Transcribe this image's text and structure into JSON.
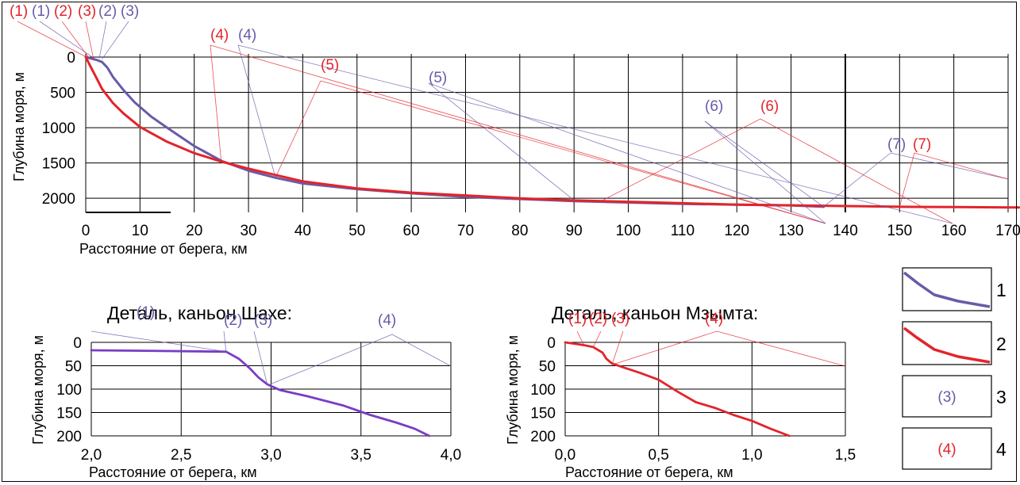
{
  "colors": {
    "blue": "#6a5aa8",
    "red": "#e3242b",
    "purple": "#7a3cc4",
    "grid": "#000000"
  },
  "chart_data": [
    {
      "type": "line",
      "title": "",
      "xlabel": "Расстояние от берега, км",
      "ylabel": "Глубина моря, м",
      "xlim": [
        0,
        170
      ],
      "ylim": [
        2200,
        0
      ],
      "x_ticks": [
        "0",
        "10",
        "20",
        "30",
        "40",
        "50",
        "60",
        "70",
        "80",
        "90",
        "100",
        "110",
        "120",
        "130",
        "140",
        "150",
        "160",
        "170"
      ],
      "y_ticks": [
        "0",
        "500",
        "1000",
        "1500",
        "2000"
      ],
      "grid": true,
      "series": [
        {
          "name": "1",
          "color": "#6a5aa8",
          "x": [
            0,
            1,
            2,
            3,
            4,
            5,
            7,
            9,
            12,
            15,
            20,
            25,
            30,
            35,
            40,
            50,
            60,
            70,
            80,
            90,
            100,
            110,
            120,
            130,
            136
          ],
          "y": [
            0,
            20,
            40,
            70,
            150,
            280,
            470,
            640,
            840,
            1000,
            1260,
            1470,
            1610,
            1710,
            1790,
            1870,
            1930,
            1980,
            2010,
            2040,
            2060,
            2080,
            2090,
            2100,
            2120
          ]
        },
        {
          "name": "2",
          "color": "#e3242b",
          "x": [
            0,
            1,
            2,
            3,
            5,
            7,
            10,
            15,
            20,
            25,
            30,
            35,
            40,
            50,
            60,
            70,
            80,
            90,
            100,
            110,
            120,
            130,
            140,
            150,
            160,
            172
          ],
          "y": [
            0,
            150,
            300,
            450,
            650,
            800,
            990,
            1200,
            1360,
            1480,
            1580,
            1670,
            1760,
            1860,
            1920,
            1960,
            2000,
            2030,
            2050,
            2070,
            2090,
            2100,
            2110,
            2120,
            2125,
            2130
          ]
        }
      ],
      "annotations": [
        {
          "label": "(1)",
          "color": "#e3242b",
          "x": 0.5,
          "y": 15
        },
        {
          "label": "(1)",
          "color": "#6a5aa8",
          "x": 1.5,
          "y": 15
        },
        {
          "label": "(2)",
          "color": "#e3242b",
          "x": 0.8,
          "y": 30
        },
        {
          "label": "(3)",
          "color": "#e3242b",
          "x": 1.5,
          "y": 50
        },
        {
          "label": "(2)",
          "color": "#6a5aa8",
          "x": 2.5,
          "y": 20
        },
        {
          "label": "(3)",
          "color": "#6a5aa8",
          "x": 3,
          "y": 30
        },
        {
          "label": "(4)",
          "color": "#e3242b",
          "x": 25,
          "y": 1500
        },
        {
          "label": "(4)",
          "color": "#6a5aa8",
          "x": 35,
          "y": 1710
        },
        {
          "label": "(5)",
          "color": "#e3242b",
          "x": 35,
          "y": 1700
        },
        {
          "label": "(5)",
          "color": "#6a5aa8",
          "x": 90,
          "y": 2030
        },
        {
          "label": "(6)",
          "color": "#6a5aa8",
          "x": 136,
          "y": 2120
        },
        {
          "label": "(6)",
          "color": "#e3242b",
          "x": 95,
          "y": 2040
        },
        {
          "label": "(7)",
          "color": "#6a5aa8",
          "x": 136,
          "y": 2120
        },
        {
          "label": "(7)",
          "color": "#e3242b",
          "x": 150,
          "y": 2120
        }
      ]
    },
    {
      "type": "line",
      "title": "Деталь, каньон Шахе:",
      "xlabel": "Расстояние от берега, км",
      "ylabel": "Глубина моря, м",
      "xlim": [
        2.0,
        4.0
      ],
      "ylim": [
        200,
        0
      ],
      "x_ticks": [
        "2,0",
        "2,5",
        "3,0",
        "3,5",
        "4,0"
      ],
      "y_ticks": [
        "0",
        "50",
        "100",
        "150",
        "200"
      ],
      "grid": true,
      "series": [
        {
          "name": "",
          "color": "#7a3cc4",
          "x": [
            2.0,
            2.3,
            2.75,
            2.82,
            2.88,
            2.93,
            2.98,
            3.05,
            3.2,
            3.4,
            3.55,
            3.7,
            3.8,
            3.88
          ],
          "y": [
            17,
            18,
            20,
            35,
            55,
            75,
            90,
            102,
            115,
            135,
            155,
            172,
            185,
            200
          ]
        }
      ],
      "annotations": [
        {
          "label": "(1)",
          "color": "#6a5aa8",
          "x": 2.75,
          "y": 20
        },
        {
          "label": "(2)",
          "color": "#6a5aa8",
          "x": 2.75,
          "y": 20
        },
        {
          "label": "(3)",
          "color": "#6a5aa8",
          "x": 2.98,
          "y": 92
        },
        {
          "label": "(4)",
          "color": "#6a5aa8",
          "x": 2.98,
          "y": 92
        }
      ]
    },
    {
      "type": "line",
      "title": "Деталь, каньон Мзымта:",
      "xlabel": "Расстояние от берега, км",
      "ylabel": "Глубина моря, м",
      "xlim": [
        0.0,
        1.5
      ],
      "ylim": [
        200,
        0
      ],
      "x_ticks": [
        "0,0",
        "0,5",
        "1,0",
        "1,5"
      ],
      "y_ticks": [
        "0",
        "50",
        "100",
        "150",
        "200"
      ],
      "grid": true,
      "series": [
        {
          "name": "",
          "color": "#e3242b",
          "x": [
            0.0,
            0.05,
            0.1,
            0.15,
            0.2,
            0.22,
            0.25,
            0.3,
            0.4,
            0.5,
            0.6,
            0.7,
            0.8,
            0.9,
            1.0,
            1.1,
            1.2
          ],
          "y": [
            0,
            3,
            6,
            10,
            22,
            35,
            45,
            52,
            65,
            80,
            105,
            128,
            140,
            155,
            168,
            185,
            200
          ]
        }
      ],
      "annotations": [
        {
          "label": "(1)",
          "color": "#e3242b",
          "x": 0.1,
          "y": 6
        },
        {
          "label": "(2)",
          "color": "#e3242b",
          "x": 0.15,
          "y": 10
        },
        {
          "label": "(3)",
          "color": "#e3242b",
          "x": 0.25,
          "y": 48
        },
        {
          "label": "(4)",
          "color": "#e3242b",
          "x": 0.25,
          "y": 48
        }
      ]
    }
  ],
  "legend": [
    {
      "number": "1",
      "kind": "line",
      "color": "#6a5aa8"
    },
    {
      "number": "2",
      "kind": "line",
      "color": "#e3242b"
    },
    {
      "number": "3",
      "kind": "label",
      "text": "(3)",
      "color": "#6a5aa8"
    },
    {
      "number": "4",
      "kind": "label",
      "text": "(4)",
      "color": "#e3242b"
    }
  ]
}
